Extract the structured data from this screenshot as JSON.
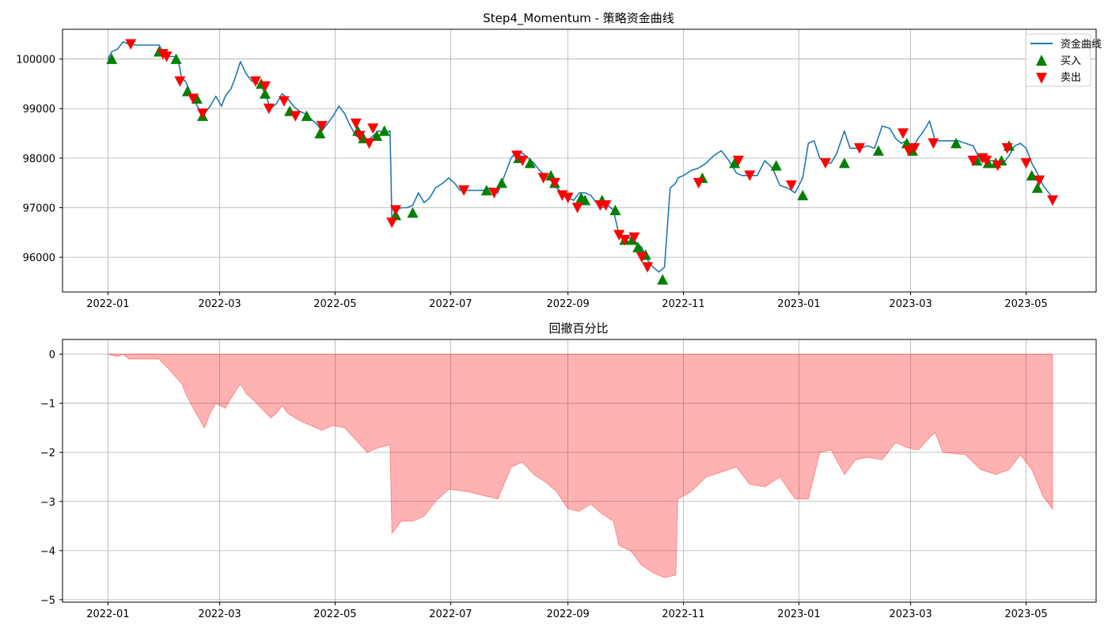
{
  "chart_data": [
    {
      "type": "line",
      "title": "Step4_Momentum - 策略资金曲线",
      "xlabel": "",
      "ylabel": "",
      "xlim": [
        "2021-12-08",
        "2023-06-07"
      ],
      "ylim": [
        95300,
        100600
      ],
      "x_ticks": [
        "2022-01",
        "2022-03",
        "2022-05",
        "2022-07",
        "2022-09",
        "2022-11",
        "2023-01",
        "2023-03",
        "2023-05"
      ],
      "y_ticks": [
        96000,
        97000,
        98000,
        99000,
        100000
      ],
      "grid": true,
      "legend": "top-right",
      "series": [
        {
          "name": "资金曲线",
          "kind": "line",
          "color": "#1f77b4",
          "x": [
            "2022-01-01",
            "2022-01-03",
            "2022-01-06",
            "2022-01-09",
            "2022-01-12",
            "2022-01-16",
            "2022-01-20",
            "2022-01-24",
            "2022-01-28",
            "2022-01-30",
            "2022-02-02",
            "2022-02-05",
            "2022-02-07",
            "2022-02-09",
            "2022-02-11",
            "2022-02-15",
            "2022-02-18",
            "2022-02-21",
            "2022-02-24",
            "2022-02-27",
            "2022-03-02",
            "2022-03-04",
            "2022-03-07",
            "2022-03-09",
            "2022-03-12",
            "2022-03-15",
            "2022-03-18",
            "2022-03-20",
            "2022-03-23",
            "2022-03-25",
            "2022-03-28",
            "2022-03-31",
            "2022-04-03",
            "2022-04-06",
            "2022-04-09",
            "2022-04-12",
            "2022-04-15",
            "2022-04-18",
            "2022-04-21",
            "2022-04-24",
            "2022-04-27",
            "2022-04-30",
            "2022-05-03",
            "2022-05-06",
            "2022-05-09",
            "2022-05-12",
            "2022-05-15",
            "2022-05-18",
            "2022-05-21",
            "2022-05-24",
            "2022-05-27",
            "2022-05-30",
            "2022-05-31",
            "2022-06-02",
            "2022-06-05",
            "2022-06-08",
            "2022-06-11",
            "2022-06-14",
            "2022-06-17",
            "2022-06-20",
            "2022-06-23",
            "2022-06-27",
            "2022-06-30",
            "2022-07-03",
            "2022-07-06",
            "2022-07-10",
            "2022-07-14",
            "2022-07-18",
            "2022-07-22",
            "2022-07-26",
            "2022-07-29",
            "2022-08-02",
            "2022-08-05",
            "2022-08-08",
            "2022-08-11",
            "2022-08-14",
            "2022-08-17",
            "2022-08-20",
            "2022-08-23",
            "2022-08-26",
            "2022-08-29",
            "2022-09-01",
            "2022-09-04",
            "2022-09-07",
            "2022-09-10",
            "2022-09-13",
            "2022-09-16",
            "2022-09-19",
            "2022-09-22",
            "2022-09-25",
            "2022-09-28",
            "2022-10-01",
            "2022-10-04",
            "2022-10-07",
            "2022-10-10",
            "2022-10-13",
            "2022-10-16",
            "2022-10-19",
            "2022-10-22",
            "2022-10-25",
            "2022-10-28",
            "2022-10-29",
            "2022-11-01",
            "2022-11-05",
            "2022-11-09",
            "2022-11-13",
            "2022-11-17",
            "2022-11-21",
            "2022-11-25",
            "2022-11-29",
            "2022-12-02",
            "2022-12-06",
            "2022-12-10",
            "2022-12-14",
            "2022-12-18",
            "2022-12-22",
            "2022-12-26",
            "2022-12-30",
            "2023-01-03",
            "2023-01-06",
            "2023-01-09",
            "2023-01-12",
            "2023-01-15",
            "2023-01-18",
            "2023-01-21",
            "2023-01-25",
            "2023-01-28",
            "2023-01-31",
            "2023-02-03",
            "2023-02-06",
            "2023-02-10",
            "2023-02-14",
            "2023-02-18",
            "2023-02-21",
            "2023-02-24",
            "2023-02-27",
            "2023-03-02",
            "2023-03-05",
            "2023-03-08",
            "2023-03-11",
            "2023-03-14",
            "2023-03-18",
            "2023-03-22",
            "2023-03-26",
            "2023-03-30",
            "2023-04-03",
            "2023-04-07",
            "2023-04-11",
            "2023-04-15",
            "2023-04-19",
            "2023-04-22",
            "2023-04-25",
            "2023-04-28",
            "2023-05-01",
            "2023-05-04",
            "2023-05-07",
            "2023-05-10",
            "2023-05-13",
            "2023-05-15"
          ],
          "y": [
            100000,
            100150,
            100200,
            100350,
            100300,
            100280,
            100280,
            100280,
            100280,
            100150,
            100050,
            100050,
            100000,
            99600,
            99550,
            99200,
            99000,
            98900,
            99050,
            99250,
            99050,
            99250,
            99400,
            99600,
            99950,
            99700,
            99550,
            99550,
            99450,
            99300,
            99000,
            99100,
            99300,
            99200,
            99050,
            98950,
            98900,
            98800,
            98700,
            98550,
            98700,
            98850,
            99050,
            98900,
            98650,
            98450,
            98400,
            98350,
            98450,
            98550,
            98500,
            98550,
            96750,
            96950,
            97000,
            97000,
            97050,
            97300,
            97100,
            97200,
            97400,
            97500,
            97600,
            97500,
            97350,
            97350,
            97350,
            97350,
            97400,
            97300,
            97600,
            98000,
            98150,
            98100,
            98000,
            97900,
            97750,
            97650,
            97550,
            97400,
            97300,
            97200,
            97150,
            97300,
            97300,
            97250,
            97100,
            97000,
            97050,
            96950,
            96450,
            96350,
            96400,
            96300,
            96200,
            95950,
            95800,
            95700,
            95800,
            97400,
            97500,
            97600,
            97650,
            97750,
            97800,
            97900,
            98050,
            98150,
            97950,
            97700,
            97650,
            97650,
            97650,
            97950,
            97800,
            97450,
            97400,
            97300,
            97600,
            98300,
            98350,
            98000,
            97900,
            97900,
            98100,
            98550,
            98200,
            98200,
            98200,
            98250,
            98200,
            98650,
            98600,
            98400,
            98300,
            98350,
            98200,
            98400,
            98550,
            98750,
            98350,
            98350,
            98350,
            98350,
            98300,
            98250,
            97950,
            97950,
            97950,
            97900,
            98050,
            98250,
            98300,
            98200,
            97900,
            97700,
            97450,
            97300,
            97200
          ]
        },
        {
          "name": "买入",
          "kind": "marker",
          "marker": "triangle-up",
          "color": "#008000",
          "x": [
            "2022-01-03",
            "2022-01-28",
            "2022-02-06",
            "2022-02-12",
            "2022-02-17",
            "2022-02-20",
            "2022-03-23",
            "2022-03-25",
            "2022-04-07",
            "2022-04-16",
            "2022-04-23",
            "2022-05-13",
            "2022-05-16",
            "2022-05-23",
            "2022-05-27",
            "2022-06-02",
            "2022-06-11",
            "2022-07-20",
            "2022-07-28",
            "2022-08-06",
            "2022-08-12",
            "2022-08-23",
            "2022-08-25",
            "2022-09-08",
            "2022-09-10",
            "2022-09-19",
            "2022-09-26",
            "2022-10-01",
            "2022-10-05",
            "2022-10-08",
            "2022-10-12",
            "2022-10-21",
            "2022-11-11",
            "2022-11-28",
            "2022-12-20",
            "2023-01-03",
            "2023-01-25",
            "2023-02-12",
            "2023-02-27",
            "2023-03-02",
            "2023-03-25",
            "2023-04-05",
            "2023-04-11",
            "2023-04-15",
            "2023-04-18",
            "2023-04-22",
            "2023-05-04",
            "2023-05-07"
          ],
          "y": [
            100000,
            100150,
            100000,
            99350,
            99200,
            98850,
            99500,
            99300,
            98950,
            98850,
            98500,
            98550,
            98400,
            98450,
            98550,
            96850,
            96900,
            97350,
            97500,
            98000,
            97900,
            97650,
            97500,
            97200,
            97150,
            97150,
            96950,
            96350,
            96350,
            96200,
            96050,
            95550,
            97600,
            97900,
            97850,
            97250,
            97900,
            98150,
            98300,
            98150,
            98300,
            97950,
            97900,
            97900,
            97950,
            98250,
            97650,
            97400
          ]
        },
        {
          "name": "卖出",
          "kind": "marker",
          "marker": "triangle-down",
          "color": "#ff0000",
          "x": [
            "2022-01-13",
            "2022-01-30",
            "2022-02-01",
            "2022-02-08",
            "2022-02-15",
            "2022-02-20",
            "2022-03-20",
            "2022-03-25",
            "2022-03-27",
            "2022-04-04",
            "2022-04-10",
            "2022-04-24",
            "2022-05-12",
            "2022-05-14",
            "2022-05-19",
            "2022-05-21",
            "2022-05-31",
            "2022-06-02",
            "2022-07-08",
            "2022-07-24",
            "2022-08-05",
            "2022-08-08",
            "2022-08-19",
            "2022-08-25",
            "2022-08-29",
            "2022-09-01",
            "2022-09-06",
            "2022-09-18",
            "2022-09-21",
            "2022-09-28",
            "2022-10-01",
            "2022-10-06",
            "2022-10-10",
            "2022-10-13",
            "2022-11-09",
            "2022-11-30",
            "2022-12-06",
            "2022-12-28",
            "2023-01-15",
            "2023-02-02",
            "2023-02-25",
            "2023-02-28",
            "2023-03-03",
            "2023-03-13",
            "2023-04-03",
            "2023-04-08",
            "2023-04-10",
            "2023-04-16",
            "2023-04-21",
            "2023-05-01",
            "2023-05-08",
            "2023-05-15"
          ],
          "y": [
            100300,
            100100,
            100050,
            99550,
            99200,
            98900,
            99550,
            99450,
            99000,
            99150,
            98850,
            98650,
            98700,
            98450,
            98300,
            98600,
            96700,
            96950,
            97350,
            97300,
            98050,
            97950,
            97600,
            97500,
            97250,
            97200,
            97000,
            97050,
            97050,
            96450,
            96350,
            96400,
            96000,
            95800,
            97500,
            97950,
            97650,
            97450,
            97900,
            98200,
            98500,
            98150,
            98200,
            98300,
            97950,
            98000,
            97950,
            97850,
            98200,
            97900,
            97550,
            97150
          ]
        }
      ]
    },
    {
      "type": "area",
      "title": "回撤百分比",
      "xlabel": "",
      "ylabel": "",
      "xlim": [
        "2021-12-08",
        "2023-06-07"
      ],
      "ylim": [
        -5.05,
        0.3
      ],
      "x_ticks": [
        "2022-01",
        "2022-03",
        "2022-05",
        "2022-07",
        "2022-09",
        "2022-11",
        "2023-01",
        "2023-03",
        "2023-05"
      ],
      "y_ticks": [
        -5,
        -4,
        -3,
        -2,
        -1,
        0
      ],
      "grid": true,
      "legend": "none",
      "series": [
        {
          "kind": "area",
          "color": "#ff0000",
          "opacity": 0.3,
          "x": [
            "2022-01-01",
            "2022-01-06",
            "2022-01-09",
            "2022-01-12",
            "2022-01-16",
            "2022-01-28",
            "2022-02-02",
            "2022-02-09",
            "2022-02-11",
            "2022-02-15",
            "2022-02-18",
            "2022-02-21",
            "2022-02-24",
            "2022-02-27",
            "2022-03-04",
            "2022-03-07",
            "2022-03-12",
            "2022-03-15",
            "2022-03-18",
            "2022-03-23",
            "2022-03-28",
            "2022-03-31",
            "2022-04-03",
            "2022-04-06",
            "2022-04-12",
            "2022-04-18",
            "2022-04-24",
            "2022-04-30",
            "2022-05-06",
            "2022-05-12",
            "2022-05-18",
            "2022-05-24",
            "2022-05-30",
            "2022-05-31",
            "2022-06-05",
            "2022-06-11",
            "2022-06-17",
            "2022-06-23",
            "2022-06-30",
            "2022-07-10",
            "2022-07-26",
            "2022-08-02",
            "2022-08-08",
            "2022-08-14",
            "2022-08-20",
            "2022-08-26",
            "2022-09-01",
            "2022-09-07",
            "2022-09-13",
            "2022-09-19",
            "2022-09-25",
            "2022-09-28",
            "2022-10-04",
            "2022-10-10",
            "2022-10-16",
            "2022-10-22",
            "2022-10-28",
            "2022-10-29",
            "2022-11-05",
            "2022-11-13",
            "2022-11-21",
            "2022-11-29",
            "2022-12-06",
            "2022-12-14",
            "2022-12-22",
            "2022-12-30",
            "2023-01-06",
            "2023-01-12",
            "2023-01-18",
            "2023-01-25",
            "2023-01-31",
            "2023-02-06",
            "2023-02-14",
            "2023-02-21",
            "2023-02-27",
            "2023-03-05",
            "2023-03-11",
            "2023-03-14",
            "2023-03-18",
            "2023-03-30",
            "2023-04-07",
            "2023-04-15",
            "2023-04-22",
            "2023-04-28",
            "2023-05-04",
            "2023-05-10",
            "2023-05-15"
          ],
          "y": [
            0,
            -0.05,
            0,
            -0.1,
            -0.1,
            -0.1,
            -0.3,
            -0.6,
            -0.8,
            -1.1,
            -1.3,
            -1.5,
            -1.2,
            -1.0,
            -1.1,
            -0.9,
            -0.6,
            -0.8,
            -0.9,
            -1.1,
            -1.3,
            -1.2,
            -1.05,
            -1.2,
            -1.35,
            -1.45,
            -1.55,
            -1.45,
            -1.5,
            -1.75,
            -2.0,
            -1.9,
            -1.85,
            -3.65,
            -3.4,
            -3.4,
            -3.3,
            -3.0,
            -2.75,
            -2.8,
            -2.95,
            -2.3,
            -2.2,
            -2.45,
            -2.6,
            -2.8,
            -3.15,
            -3.2,
            -3.05,
            -3.25,
            -3.4,
            -3.9,
            -4.0,
            -4.3,
            -4.45,
            -4.55,
            -4.5,
            -2.95,
            -2.8,
            -2.5,
            -2.4,
            -2.3,
            -2.65,
            -2.7,
            -2.5,
            -2.95,
            -2.95,
            -2.0,
            -1.95,
            -2.45,
            -2.15,
            -2.1,
            -2.15,
            -1.8,
            -1.9,
            -1.95,
            -1.7,
            -1.6,
            -2.0,
            -2.05,
            -2.35,
            -2.45,
            -2.35,
            -2.05,
            -2.35,
            -2.9,
            -3.15
          ]
        }
      ]
    }
  ],
  "legend_labels": [
    "资金曲线",
    "买入",
    "卖出"
  ]
}
